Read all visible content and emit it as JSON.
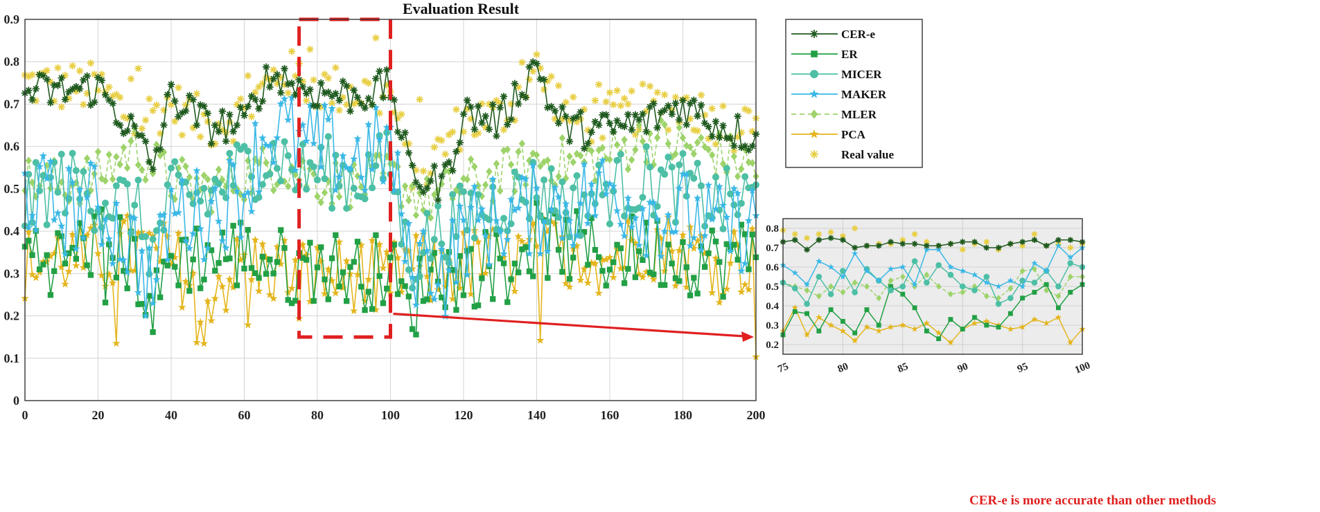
{
  "chart_data": [
    {
      "id": "main",
      "type": "line",
      "title": "Evaluation Result",
      "xlabel": "",
      "ylabel": "",
      "xlim": [
        0,
        200
      ],
      "ylim": [
        0,
        0.9
      ],
      "xticks": [
        0,
        20,
        40,
        60,
        80,
        100,
        120,
        140,
        160,
        180,
        200
      ],
      "yticks": [
        0,
        0.1,
        0.2,
        0.3,
        0.4,
        0.5,
        0.6,
        0.7,
        0.8,
        0.9
      ],
      "xtick_labels": [
        "0",
        "20",
        "40",
        "60",
        "80",
        "100",
        "120",
        "140",
        "160",
        "180",
        "200"
      ],
      "ytick_labels": [
        "0",
        "0.1",
        "0.2",
        "0.3",
        "0.4",
        "0.5",
        "0.6",
        "0.7",
        "0.8",
        "0.9"
      ],
      "grid": true,
      "legend_position": "outside-right-top",
      "highlight_box": {
        "x": [
          75,
          100
        ],
        "y": [
          0.15,
          0.9
        ],
        "style": "red-dashed"
      },
      "series": [
        {
          "name": "CER-e",
          "color": "#1f5a1f",
          "marker": "asterisk",
          "line": "solid",
          "anchors_x": [
            0,
            10,
            20,
            30,
            35,
            40,
            50,
            60,
            65,
            70,
            75,
            80,
            90,
            100,
            105,
            110,
            115,
            120,
            130,
            140,
            145,
            150,
            160,
            170,
            180,
            190,
            200
          ],
          "anchors_y": [
            0.73,
            0.73,
            0.74,
            0.63,
            0.55,
            0.72,
            0.65,
            0.65,
            0.75,
            0.77,
            0.74,
            0.73,
            0.72,
            0.74,
            0.55,
            0.51,
            0.52,
            0.68,
            0.66,
            0.8,
            0.67,
            0.64,
            0.64,
            0.66,
            0.7,
            0.65,
            0.62
          ]
        },
        {
          "name": "ER",
          "color": "#22a045",
          "marker": "square",
          "line": "solid",
          "anchors_x": [
            0,
            10,
            20,
            30,
            35,
            40,
            50,
            60,
            70,
            75,
            80,
            90,
            100,
            105,
            110,
            120,
            130,
            140,
            150,
            160,
            170,
            180,
            190,
            200
          ],
          "anchors_y": [
            0.36,
            0.33,
            0.38,
            0.33,
            0.2,
            0.34,
            0.34,
            0.35,
            0.32,
            0.3,
            0.33,
            0.3,
            0.31,
            0.2,
            0.3,
            0.3,
            0.33,
            0.38,
            0.36,
            0.34,
            0.36,
            0.34,
            0.33,
            0.35
          ]
        },
        {
          "name": "MICER",
          "color": "#4cbfa5",
          "marker": "circle",
          "line": "solid",
          "anchors_x": [
            0,
            10,
            20,
            30,
            35,
            40,
            50,
            60,
            70,
            75,
            80,
            90,
            100,
            105,
            110,
            120,
            130,
            140,
            150,
            160,
            170,
            180,
            190,
            200
          ],
          "anchors_y": [
            0.46,
            0.52,
            0.48,
            0.46,
            0.35,
            0.48,
            0.48,
            0.55,
            0.58,
            0.53,
            0.55,
            0.52,
            0.56,
            0.32,
            0.38,
            0.43,
            0.47,
            0.5,
            0.46,
            0.5,
            0.52,
            0.5,
            0.46,
            0.48
          ]
        },
        {
          "name": "MAKER",
          "color": "#3ab8e6",
          "marker": "star",
          "line": "solid",
          "anchors_x": [
            0,
            10,
            20,
            30,
            35,
            40,
            50,
            60,
            65,
            70,
            75,
            80,
            90,
            100,
            105,
            110,
            115,
            120,
            130,
            140,
            150,
            160,
            170,
            180,
            190,
            200
          ],
          "anchors_y": [
            0.5,
            0.45,
            0.46,
            0.36,
            0.26,
            0.45,
            0.44,
            0.5,
            0.62,
            0.65,
            0.6,
            0.6,
            0.57,
            0.6,
            0.32,
            0.34,
            0.3,
            0.4,
            0.43,
            0.45,
            0.46,
            0.5,
            0.45,
            0.44,
            0.4,
            0.42
          ]
        },
        {
          "name": "MLER",
          "color": "#9dd36a",
          "marker": "diamond",
          "line": "dashed",
          "anchors_x": [
            0,
            10,
            20,
            30,
            40,
            50,
            60,
            70,
            75,
            80,
            90,
            100,
            105,
            110,
            120,
            130,
            140,
            150,
            160,
            170,
            180,
            190,
            200
          ],
          "anchors_y": [
            0.52,
            0.51,
            0.53,
            0.6,
            0.52,
            0.5,
            0.53,
            0.56,
            0.54,
            0.52,
            0.51,
            0.53,
            0.5,
            0.47,
            0.51,
            0.53,
            0.57,
            0.56,
            0.58,
            0.62,
            0.6,
            0.58,
            0.55
          ]
        },
        {
          "name": "PCA",
          "color": "#e4b51c",
          "marker": "pentagram",
          "line": "solid",
          "anchors_x": [
            0,
            10,
            20,
            30,
            40,
            50,
            60,
            70,
            75,
            80,
            90,
            100,
            105,
            110,
            120,
            130,
            140,
            150,
            160,
            170,
            180,
            190,
            200
          ],
          "anchors_y": [
            0.32,
            0.34,
            0.33,
            0.36,
            0.33,
            0.26,
            0.32,
            0.31,
            0.3,
            0.29,
            0.3,
            0.28,
            0.33,
            0.3,
            0.32,
            0.33,
            0.34,
            0.36,
            0.33,
            0.38,
            0.35,
            0.34,
            0.33
          ]
        },
        {
          "name": "Real value",
          "color": "#e8cf45",
          "marker": "asterisk",
          "line": "none",
          "anchors_x": [
            0,
            10,
            20,
            30,
            40,
            50,
            60,
            70,
            75,
            80,
            90,
            100,
            105,
            110,
            120,
            130,
            140,
            150,
            160,
            170,
            180,
            190,
            200
          ],
          "anchors_y": [
            0.75,
            0.74,
            0.74,
            0.66,
            0.7,
            0.65,
            0.68,
            0.78,
            0.76,
            0.74,
            0.73,
            0.72,
            0.56,
            0.55,
            0.66,
            0.67,
            0.78,
            0.66,
            0.67,
            0.69,
            0.7,
            0.66,
            0.63
          ]
        }
      ]
    },
    {
      "id": "inset",
      "type": "line",
      "title": "",
      "xlim": [
        75,
        100
      ],
      "ylim": [
        0.15,
        0.85
      ],
      "xticks": [
        75,
        80,
        85,
        90,
        95,
        100
      ],
      "yticks": [
        0.2,
        0.3,
        0.4,
        0.5,
        0.6,
        0.7,
        0.8
      ],
      "xtick_labels": [
        "75",
        "80",
        "85",
        "90",
        "95",
        "100"
      ],
      "ytick_labels": [
        "0.2",
        "0.3",
        "0.4",
        "0.5",
        "0.6",
        "0.7",
        "0.8"
      ],
      "grid": true,
      "x": [
        75,
        76,
        77,
        78,
        79,
        80,
        81,
        82,
        83,
        84,
        85,
        86,
        87,
        88,
        89,
        90,
        91,
        92,
        93,
        94,
        95,
        96,
        97,
        98,
        99,
        100
      ],
      "series": [
        {
          "name": "CER-e",
          "values": [
            0.73,
            0.74,
            0.69,
            0.74,
            0.75,
            0.74,
            0.7,
            0.71,
            0.71,
            0.73,
            0.72,
            0.72,
            0.71,
            0.71,
            0.72,
            0.73,
            0.73,
            0.7,
            0.7,
            0.72,
            0.73,
            0.74,
            0.71,
            0.74,
            0.74,
            0.73
          ]
        },
        {
          "name": "ER",
          "values": [
            0.25,
            0.37,
            0.36,
            0.27,
            0.38,
            0.32,
            0.26,
            0.38,
            0.3,
            0.5,
            0.46,
            0.39,
            0.27,
            0.23,
            0.33,
            0.28,
            0.34,
            0.3,
            0.29,
            0.36,
            0.44,
            0.47,
            0.51,
            0.39,
            0.47,
            0.51
          ]
        },
        {
          "name": "MICER",
          "values": [
            0.52,
            0.49,
            0.41,
            0.55,
            0.46,
            0.58,
            0.47,
            0.59,
            0.53,
            0.48,
            0.5,
            0.63,
            0.52,
            0.61,
            0.56,
            0.5,
            0.48,
            0.55,
            0.41,
            0.44,
            0.53,
            0.52,
            0.58,
            0.5,
            0.62,
            0.6
          ]
        },
        {
          "name": "MAKER",
          "values": [
            0.61,
            0.57,
            0.51,
            0.63,
            0.6,
            0.55,
            0.67,
            0.58,
            0.53,
            0.59,
            0.6,
            0.51,
            0.69,
            0.69,
            0.6,
            0.58,
            0.56,
            0.52,
            0.5,
            0.53,
            0.5,
            0.62,
            0.58,
            0.71,
            0.65,
            0.7
          ]
        },
        {
          "name": "MLER",
          "values": [
            0.52,
            0.5,
            0.48,
            0.45,
            0.5,
            0.47,
            0.52,
            0.5,
            0.44,
            0.53,
            0.55,
            0.5,
            0.56,
            0.5,
            0.46,
            0.47,
            0.5,
            0.45,
            0.44,
            0.49,
            0.58,
            0.59,
            0.48,
            0.45,
            0.55,
            0.55
          ]
        },
        {
          "name": "PCA",
          "values": [
            0.27,
            0.39,
            0.25,
            0.34,
            0.3,
            0.27,
            0.22,
            0.29,
            0.27,
            0.29,
            0.3,
            0.28,
            0.31,
            0.26,
            0.21,
            0.28,
            0.31,
            0.32,
            0.3,
            0.28,
            0.29,
            0.33,
            0.31,
            0.34,
            0.21,
            0.28
          ]
        },
        {
          "name": "Real value",
          "values": [
            0.79,
            0.77,
            0.75,
            0.77,
            0.78,
            0.76,
            0.8,
            0.71,
            0.72,
            0.72,
            0.74,
            0.77,
            0.73,
            0.71,
            0.72,
            0.69,
            0.72,
            0.73,
            0.69,
            0.72,
            0.71,
            0.77,
            0.71,
            0.72,
            0.7,
            0.72
          ]
        }
      ]
    }
  ],
  "annotation": {
    "text": "CER-e is more accurate than other methods",
    "color": "#e02020"
  }
}
